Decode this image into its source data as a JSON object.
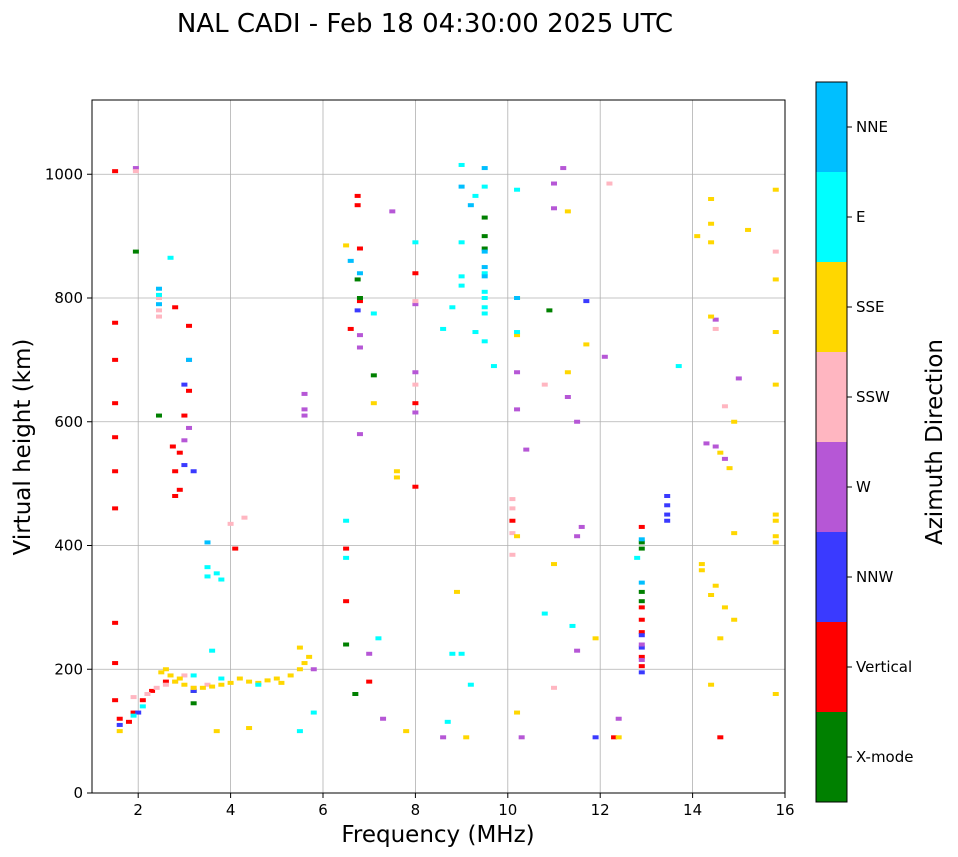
{
  "chart_data": {
    "type": "scatter",
    "title": "NAL CADI - Feb 18 04:30:00 2025 UTC",
    "xlabel": "Frequency (MHz)",
    "ylabel": "Virtual height (km)",
    "xlim": [
      1.0,
      16.0
    ],
    "ylim": [
      0,
      1120
    ],
    "xticks": [
      2,
      4,
      6,
      8,
      10,
      12,
      14,
      16
    ],
    "yticks": [
      0,
      200,
      400,
      600,
      800,
      1000
    ],
    "xtick_labels": [
      "2",
      "4",
      "6",
      "8",
      "10",
      "12",
      "14",
      "16"
    ],
    "ytick_labels": [
      "0",
      "200",
      "400",
      "600",
      "800",
      "1000"
    ],
    "grid": true,
    "colorbar": {
      "label": "Azimuth Direction",
      "categories": [
        {
          "name": "X-mode",
          "color": "#008000"
        },
        {
          "name": "Vertical",
          "color": "#ff0000"
        },
        {
          "name": "NNW",
          "color": "#3a3aff"
        },
        {
          "name": "W",
          "color": "#b657d6"
        },
        {
          "name": "SSW",
          "color": "#ffb6c1"
        },
        {
          "name": "SSE",
          "color": "#ffd700"
        },
        {
          "name": "E",
          "color": "#00ffff"
        },
        {
          "name": "NNE",
          "color": "#00bfff"
        }
      ]
    },
    "series": [
      {
        "name": "Vertical",
        "points": [
          [
            1.5,
            1005
          ],
          [
            1.5,
            760
          ],
          [
            1.5,
            700
          ],
          [
            1.5,
            630
          ],
          [
            1.5,
            575
          ],
          [
            1.5,
            520
          ],
          [
            1.5,
            460
          ],
          [
            1.5,
            275
          ],
          [
            1.5,
            210
          ],
          [
            1.5,
            150
          ],
          [
            1.6,
            120
          ],
          [
            1.8,
            115
          ],
          [
            1.9,
            130
          ],
          [
            2.1,
            150
          ],
          [
            2.3,
            165
          ],
          [
            2.6,
            180
          ],
          [
            2.8,
            480
          ],
          [
            2.9,
            490
          ],
          [
            2.8,
            520
          ],
          [
            2.9,
            550
          ],
          [
            2.75,
            560
          ],
          [
            3.0,
            610
          ],
          [
            3.1,
            650
          ],
          [
            3.1,
            755
          ],
          [
            2.8,
            785
          ],
          [
            4.1,
            395
          ],
          [
            6.5,
            395
          ],
          [
            6.5,
            310
          ],
          [
            6.75,
            965
          ],
          [
            6.75,
            950
          ],
          [
            6.8,
            880
          ],
          [
            6.8,
            795
          ],
          [
            6.6,
            750
          ],
          [
            7.0,
            180
          ],
          [
            8.0,
            495
          ],
          [
            8.0,
            630
          ],
          [
            8.0,
            840
          ],
          [
            10.1,
            440
          ],
          [
            12.3,
            90
          ],
          [
            12.9,
            430
          ],
          [
            12.9,
            300
          ],
          [
            12.9,
            280
          ],
          [
            12.9,
            260
          ],
          [
            12.9,
            220
          ],
          [
            12.9,
            205
          ],
          [
            14.6,
            90
          ]
        ]
      },
      {
        "name": "X-mode",
        "points": [
          [
            1.95,
            875
          ],
          [
            2.45,
            610
          ],
          [
            3.2,
            145
          ],
          [
            3.2,
            165
          ],
          [
            6.7,
            160
          ],
          [
            6.5,
            240
          ],
          [
            6.75,
            830
          ],
          [
            6.8,
            800
          ],
          [
            7.1,
            675
          ],
          [
            9.5,
            930
          ],
          [
            9.5,
            900
          ],
          [
            9.5,
            880
          ],
          [
            10.9,
            780
          ],
          [
            12.9,
            395
          ],
          [
            12.9,
            405
          ],
          [
            12.9,
            325
          ],
          [
            12.9,
            310
          ]
        ]
      },
      {
        "name": "NNW",
        "points": [
          [
            1.6,
            110
          ],
          [
            2.0,
            130
          ],
          [
            3.0,
            530
          ],
          [
            3.2,
            520
          ],
          [
            3.0,
            660
          ],
          [
            3.2,
            165
          ],
          [
            6.75,
            780
          ],
          [
            11.7,
            795
          ],
          [
            11.9,
            90
          ],
          [
            12.9,
            195
          ],
          [
            12.9,
            235
          ],
          [
            12.9,
            255
          ],
          [
            13.45,
            465
          ],
          [
            13.45,
            450
          ],
          [
            13.45,
            440
          ],
          [
            13.45,
            480
          ]
        ]
      },
      {
        "name": "W",
        "points": [
          [
            1.95,
            1010
          ],
          [
            3.1,
            590
          ],
          [
            3.0,
            570
          ],
          [
            3.1,
            700
          ],
          [
            5.6,
            645
          ],
          [
            5.6,
            620
          ],
          [
            5.6,
            610
          ],
          [
            5.8,
            200
          ],
          [
            6.8,
            720
          ],
          [
            6.8,
            580
          ],
          [
            6.8,
            740
          ],
          [
            7.0,
            225
          ],
          [
            7.3,
            120
          ],
          [
            7.5,
            940
          ],
          [
            8.0,
            680
          ],
          [
            8.0,
            615
          ],
          [
            8.6,
            90
          ],
          [
            10.2,
            620
          ],
          [
            10.2,
            680
          ],
          [
            10.4,
            555
          ],
          [
            11.0,
            985
          ],
          [
            11.0,
            945
          ],
          [
            11.2,
            1010
          ],
          [
            11.3,
            640
          ],
          [
            11.5,
            600
          ],
          [
            11.6,
            430
          ],
          [
            11.5,
            230
          ],
          [
            11.5,
            415
          ],
          [
            12.1,
            705
          ],
          [
            12.4,
            120
          ],
          [
            12.9,
            215
          ],
          [
            12.9,
            240
          ],
          [
            14.3,
            565
          ],
          [
            14.5,
            560
          ],
          [
            14.7,
            540
          ],
          [
            15.0,
            670
          ],
          [
            14.5,
            765
          ],
          [
            10.3,
            90
          ],
          [
            8.0,
            790
          ]
        ]
      },
      {
        "name": "SSW",
        "points": [
          [
            1.95,
            1005
          ],
          [
            2.45,
            800
          ],
          [
            2.45,
            780
          ],
          [
            2.45,
            770
          ],
          [
            4.0,
            435
          ],
          [
            4.3,
            445
          ],
          [
            8.0,
            795
          ],
          [
            8.0,
            660
          ],
          [
            10.1,
            475
          ],
          [
            10.1,
            460
          ],
          [
            10.1,
            420
          ],
          [
            10.1,
            385
          ],
          [
            10.8,
            660
          ],
          [
            11.0,
            170
          ],
          [
            12.2,
            985
          ],
          [
            14.7,
            625
          ],
          [
            15.8,
            875
          ],
          [
            14.5,
            750
          ],
          [
            1.9,
            155
          ],
          [
            2.2,
            160
          ],
          [
            2.4,
            170
          ],
          [
            2.6,
            175
          ],
          [
            2.8,
            180
          ],
          [
            3.0,
            190
          ],
          [
            3.2,
            170
          ],
          [
            3.5,
            175
          ]
        ]
      },
      {
        "name": "SSE",
        "points": [
          [
            1.6,
            100
          ],
          [
            2.5,
            195
          ],
          [
            2.6,
            200
          ],
          [
            2.7,
            190
          ],
          [
            2.8,
            180
          ],
          [
            2.9,
            185
          ],
          [
            3.0,
            175
          ],
          [
            3.2,
            170
          ],
          [
            3.4,
            170
          ],
          [
            3.6,
            172
          ],
          [
            3.8,
            175
          ],
          [
            4.0,
            178
          ],
          [
            4.2,
            185
          ],
          [
            4.4,
            180
          ],
          [
            4.6,
            178
          ],
          [
            4.8,
            182
          ],
          [
            5.0,
            185
          ],
          [
            5.1,
            178
          ],
          [
            5.3,
            190
          ],
          [
            5.5,
            200
          ],
          [
            5.6,
            210
          ],
          [
            5.7,
            220
          ],
          [
            5.5,
            235
          ],
          [
            3.7,
            100
          ],
          [
            4.4,
            105
          ],
          [
            6.5,
            885
          ],
          [
            7.1,
            630
          ],
          [
            7.6,
            520
          ],
          [
            7.6,
            510
          ],
          [
            7.8,
            100
          ],
          [
            8.9,
            325
          ],
          [
            9.1,
            90
          ],
          [
            10.2,
            800
          ],
          [
            10.2,
            740
          ],
          [
            10.2,
            130
          ],
          [
            10.2,
            415
          ],
          [
            11.0,
            370
          ],
          [
            11.3,
            940
          ],
          [
            11.3,
            680
          ],
          [
            11.7,
            725
          ],
          [
            11.9,
            250
          ],
          [
            12.4,
            90
          ],
          [
            14.1,
            900
          ],
          [
            14.2,
            370
          ],
          [
            14.2,
            360
          ],
          [
            14.4,
            960
          ],
          [
            14.4,
            920
          ],
          [
            14.4,
            890
          ],
          [
            14.4,
            770
          ],
          [
            14.5,
            335
          ],
          [
            14.4,
            320
          ],
          [
            14.7,
            300
          ],
          [
            14.6,
            250
          ],
          [
            14.4,
            175
          ],
          [
            14.6,
            550
          ],
          [
            14.8,
            525
          ],
          [
            14.9,
            600
          ],
          [
            14.9,
            420
          ],
          [
            14.9,
            280
          ],
          [
            15.2,
            910
          ],
          [
            15.8,
            975
          ],
          [
            15.8,
            830
          ],
          [
            15.8,
            745
          ],
          [
            15.8,
            660
          ],
          [
            15.8,
            440
          ],
          [
            15.8,
            415
          ],
          [
            15.8,
            405
          ],
          [
            15.8,
            160
          ],
          [
            15.8,
            450
          ]
        ]
      },
      {
        "name": "E",
        "points": [
          [
            1.9,
            125
          ],
          [
            2.1,
            140
          ],
          [
            2.7,
            865
          ],
          [
            3.5,
            365
          ],
          [
            3.5,
            350
          ],
          [
            3.7,
            355
          ],
          [
            3.8,
            345
          ],
          [
            3.6,
            230
          ],
          [
            3.8,
            185
          ],
          [
            4.6,
            175
          ],
          [
            6.5,
            440
          ],
          [
            6.5,
            380
          ],
          [
            5.8,
            130
          ],
          [
            5.5,
            100
          ],
          [
            7.2,
            250
          ],
          [
            7.1,
            775
          ],
          [
            8.0,
            890
          ],
          [
            8.6,
            750
          ],
          [
            8.8,
            785
          ],
          [
            9.0,
            890
          ],
          [
            9.0,
            835
          ],
          [
            9.0,
            820
          ],
          [
            9.0,
            1015
          ],
          [
            9.3,
            745
          ],
          [
            9.3,
            965
          ],
          [
            9.5,
            980
          ],
          [
            9.5,
            840
          ],
          [
            9.5,
            810
          ],
          [
            9.5,
            800
          ],
          [
            9.5,
            785
          ],
          [
            9.5,
            775
          ],
          [
            9.5,
            730
          ],
          [
            9.7,
            690
          ],
          [
            8.7,
            115
          ],
          [
            8.8,
            225
          ],
          [
            9.0,
            225
          ],
          [
            9.2,
            175
          ],
          [
            10.2,
            975
          ],
          [
            10.2,
            745
          ],
          [
            10.8,
            290
          ],
          [
            11.4,
            270
          ],
          [
            12.8,
            380
          ],
          [
            13.7,
            690
          ],
          [
            2.45,
            805
          ],
          [
            3.2,
            190
          ]
        ]
      },
      {
        "name": "NNE",
        "points": [
          [
            2.45,
            815
          ],
          [
            2.45,
            790
          ],
          [
            3.1,
            700
          ],
          [
            3.5,
            405
          ],
          [
            6.6,
            860
          ],
          [
            6.8,
            840
          ],
          [
            9.0,
            980
          ],
          [
            9.2,
            950
          ],
          [
            9.5,
            1010
          ],
          [
            9.5,
            875
          ],
          [
            9.5,
            850
          ],
          [
            9.5,
            835
          ],
          [
            10.2,
            800
          ],
          [
            12.9,
            410
          ],
          [
            12.9,
            340
          ]
        ]
      }
    ]
  }
}
